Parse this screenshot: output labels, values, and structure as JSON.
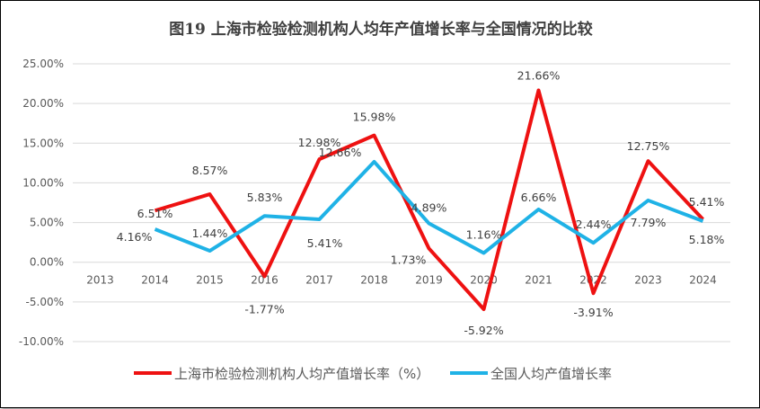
{
  "chart_data": {
    "type": "line",
    "title": "图19  上海市检验检测机构人均年产值增长率与全国情况的比较",
    "categories": [
      "2013",
      "2014",
      "2015",
      "2016",
      "2017",
      "2018",
      "2019",
      "2020",
      "2021",
      "2022",
      "2023",
      "2024"
    ],
    "series": [
      {
        "name": "上海市检验检测机构人均产值增长率（%）",
        "color": "#ee1111",
        "values": [
          null,
          6.51,
          8.57,
          -1.77,
          12.98,
          15.98,
          1.73,
          -5.92,
          21.66,
          -3.91,
          12.75,
          5.41
        ]
      },
      {
        "name": "全国人均产值增长率",
        "color": "#1fb2e6",
        "values": [
          null,
          4.16,
          1.44,
          5.83,
          5.41,
          12.66,
          4.89,
          1.16,
          6.66,
          2.44,
          7.79,
          5.18
        ]
      }
    ],
    "ylim": [
      -10,
      25
    ],
    "yticks": [
      -10,
      -5,
      0,
      5,
      10,
      15,
      20,
      25
    ],
    "ytick_labels": [
      "-10.00%",
      "-5.00%",
      "0.00%",
      "5.00%",
      "10.00%",
      "15.00%",
      "20.00%",
      "25.00%"
    ],
    "grid": true,
    "legend": "bottom",
    "xlabel": "",
    "ylabel": ""
  }
}
